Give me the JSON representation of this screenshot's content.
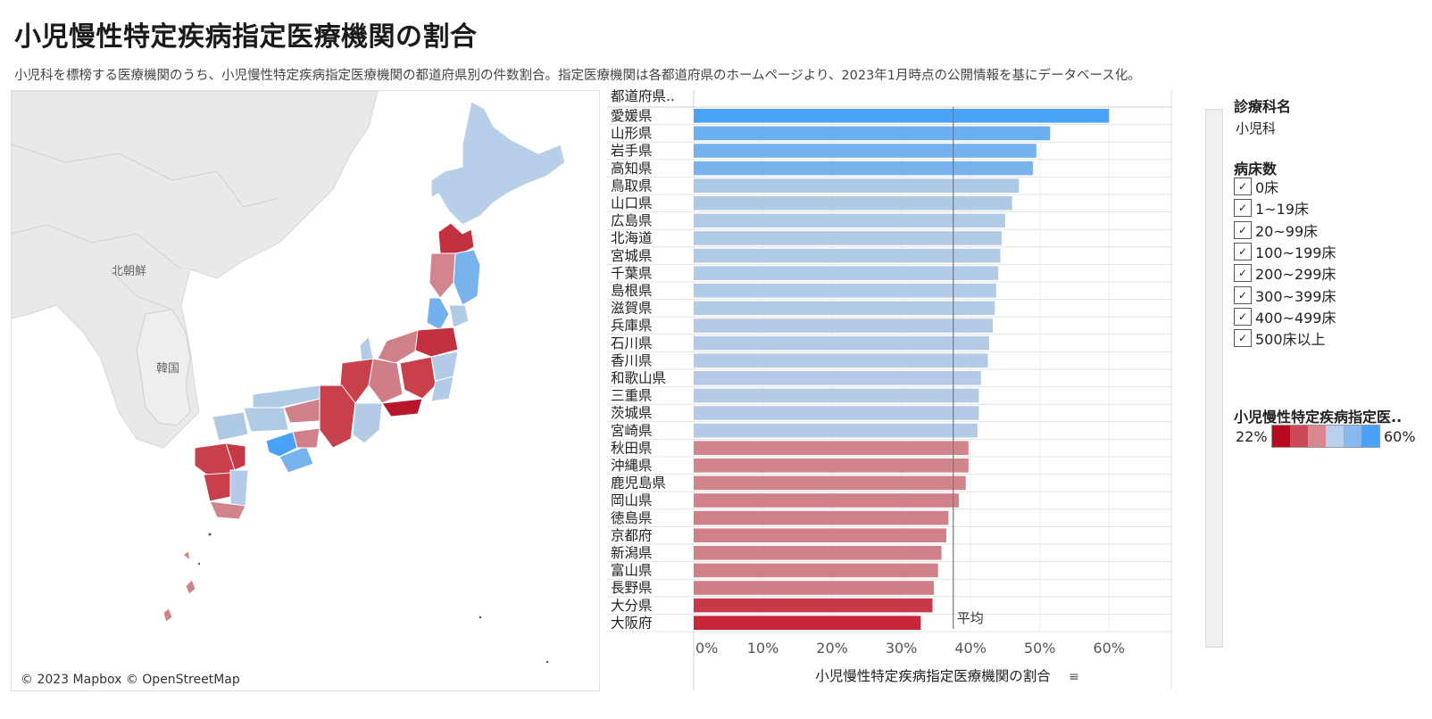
{
  "title": "小児慢性特定疾病指定医療機関の割合",
  "subtitle": "小児科を標榜する医療機関のうち、小児慢性特定疾病指定医療機関の都道府県別の件数割合。指定医療機関は各都道府県のホームページより、2023年1月時点の公開情報を基にデータベース化。",
  "map": {
    "attribution": "© 2023 Mapbox © OpenStreetMap",
    "labels": [
      "北朝鮮",
      "韓国"
    ]
  },
  "chart_data": {
    "type": "bar",
    "orientation": "horizontal",
    "row_header": "都道府県..",
    "categories": [
      "愛媛県",
      "山形県",
      "岩手県",
      "高知県",
      "鳥取県",
      "山口県",
      "広島県",
      "北海道",
      "宮城県",
      "千葉県",
      "島根県",
      "滋賀県",
      "兵庫県",
      "石川県",
      "香川県",
      "和歌山県",
      "三重県",
      "茨城県",
      "宮崎県",
      "秋田県",
      "沖縄県",
      "鹿児島県",
      "岡山県",
      "徳島県",
      "京都府",
      "新潟県",
      "富山県",
      "長野県",
      "大分県",
      "大阪府"
    ],
    "values": [
      60.0,
      51.5,
      49.5,
      49.0,
      47.0,
      46.0,
      45.0,
      44.5,
      44.3,
      44.0,
      43.7,
      43.5,
      43.2,
      42.7,
      42.5,
      41.5,
      41.2,
      41.2,
      41.0,
      39.7,
      39.7,
      39.3,
      38.3,
      36.8,
      36.5,
      35.8,
      35.3,
      34.7,
      34.5,
      32.8
    ],
    "colors": [
      "#4aa3f7",
      "#6aaff0",
      "#74b2ef",
      "#78b3ee",
      "#adc9e6",
      "#afcae6",
      "#b1cbe6",
      "#b1cbe6",
      "#b1cbe6",
      "#b2cbe6",
      "#b2cbe6",
      "#b2cbe6",
      "#b3cbe6",
      "#b3cbe6",
      "#b3cbe6",
      "#b3cbe6",
      "#b3cbe6",
      "#b3cbe6",
      "#b3cbe6",
      "#d2848b",
      "#d2848b",
      "#d2848b",
      "#d2808a",
      "#d08088",
      "#d08088",
      "#d08088",
      "#d08088",
      "#cf7e87",
      "#c73949",
      "#c6253a"
    ],
    "xlim": [
      0,
      69
    ],
    "xticks": [
      "0%",
      "10%",
      "20%",
      "30%",
      "40%",
      "50%",
      "60%"
    ],
    "xtick_values": [
      0,
      10,
      20,
      30,
      40,
      50,
      60
    ],
    "xlabel": "小児慢性特定疾病指定医療機関の割合",
    "reference_line": {
      "value": 37.5,
      "label": "平均"
    }
  },
  "filters": {
    "dept_header": "診療科名",
    "dept_value": "小児科",
    "beds_header": "病床数",
    "beds_options": [
      "0床",
      "1~19床",
      "20~99床",
      "100~199床",
      "200~299床",
      "300~399床",
      "400~499床",
      "500床以上"
    ],
    "check_mark": "✓"
  },
  "color_legend": {
    "header": "小児慢性特定疾病指定医..",
    "min_label": "22%",
    "max_label": "60%",
    "ramp": [
      "#b80a1e",
      "#cc4a57",
      "#d9888f",
      "#b9d0ea",
      "#86b9ef",
      "#4aa3f7"
    ]
  }
}
